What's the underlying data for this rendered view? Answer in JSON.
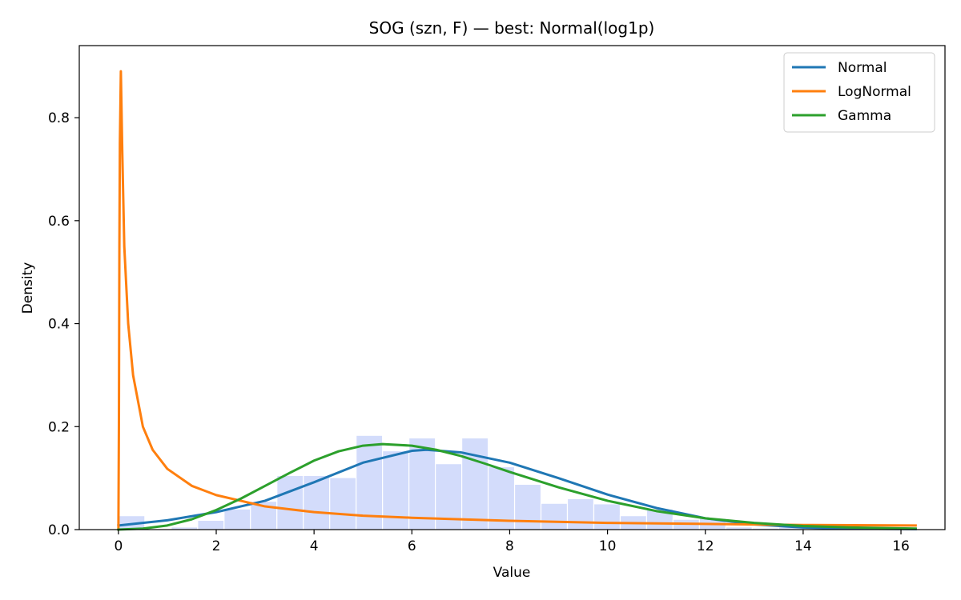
{
  "chart_data": {
    "type": "histogram+line",
    "title": "SOG (szn, F) — best: Normal(log1p)",
    "xlabel": "Value",
    "ylabel": "Density",
    "xlim": [
      -0.8,
      16.9
    ],
    "ylim": [
      0,
      0.94
    ],
    "x_ticks": [
      0,
      2,
      4,
      6,
      8,
      10,
      12,
      14,
      16
    ],
    "y_ticks": [
      0.0,
      0.2,
      0.4,
      0.6,
      0.8
    ],
    "x_tick_labels": [
      "0",
      "2",
      "4",
      "6",
      "8",
      "10",
      "12",
      "14",
      "16"
    ],
    "y_tick_labels": [
      "0.0",
      "0.2",
      "0.4",
      "0.6",
      "0.8"
    ],
    "grid": false,
    "histogram": {
      "color": "#d3dcfb",
      "bins": [
        {
          "x0": 0.0,
          "x1": 0.54,
          "density": 0.027
        },
        {
          "x0": 0.54,
          "x1": 1.08,
          "density": 0.0
        },
        {
          "x0": 1.08,
          "x1": 1.62,
          "density": 0.005
        },
        {
          "x0": 1.62,
          "x1": 2.16,
          "density": 0.018
        },
        {
          "x0": 2.16,
          "x1": 2.7,
          "density": 0.04
        },
        {
          "x0": 2.7,
          "x1": 3.24,
          "density": 0.055
        },
        {
          "x0": 3.24,
          "x1": 3.78,
          "density": 0.105
        },
        {
          "x0": 3.78,
          "x1": 4.32,
          "density": 0.105
        },
        {
          "x0": 4.32,
          "x1": 4.86,
          "density": 0.101
        },
        {
          "x0": 4.86,
          "x1": 5.4,
          "density": 0.183
        },
        {
          "x0": 5.4,
          "x1": 5.94,
          "density": 0.153
        },
        {
          "x0": 5.94,
          "x1": 6.48,
          "density": 0.178
        },
        {
          "x0": 6.48,
          "x1": 7.02,
          "density": 0.128
        },
        {
          "x0": 7.02,
          "x1": 7.56,
          "density": 0.178
        },
        {
          "x0": 7.56,
          "x1": 8.1,
          "density": 0.122
        },
        {
          "x0": 8.1,
          "x1": 8.64,
          "density": 0.088
        },
        {
          "x0": 8.64,
          "x1": 9.18,
          "density": 0.051
        },
        {
          "x0": 9.18,
          "x1": 9.72,
          "density": 0.06
        },
        {
          "x0": 9.72,
          "x1": 10.26,
          "density": 0.05
        },
        {
          "x0": 10.26,
          "x1": 10.8,
          "density": 0.027
        },
        {
          "x0": 10.8,
          "x1": 11.34,
          "density": 0.04
        },
        {
          "x0": 11.34,
          "x1": 11.88,
          "density": 0.02
        },
        {
          "x0": 11.88,
          "x1": 12.42,
          "density": 0.022
        },
        {
          "x0": 12.42,
          "x1": 12.96,
          "density": 0.005
        },
        {
          "x0": 12.96,
          "x1": 13.5,
          "density": 0.003
        },
        {
          "x0": 13.5,
          "x1": 14.04,
          "density": 0.005
        }
      ]
    },
    "series": [
      {
        "name": "Normal",
        "color": "#1f77b4",
        "x": [
          0.0,
          1.0,
          2.0,
          3.0,
          4.0,
          5.0,
          6.0,
          6.3,
          7.0,
          8.0,
          9.0,
          10.0,
          11.0,
          12.0,
          13.0,
          14.0,
          15.0,
          16.3
        ],
        "y": [
          0.008,
          0.018,
          0.034,
          0.056,
          0.092,
          0.13,
          0.153,
          0.155,
          0.15,
          0.13,
          0.1,
          0.068,
          0.042,
          0.022,
          0.01,
          0.004,
          0.002,
          0.001
        ]
      },
      {
        "name": "LogNormal",
        "color": "#ff7f0e",
        "x": [
          0.0,
          0.01,
          0.02,
          0.03,
          0.05,
          0.08,
          0.12,
          0.2,
          0.3,
          0.5,
          0.7,
          1.0,
          1.5,
          2.0,
          3.0,
          4.0,
          5.0,
          6.0,
          8.0,
          10.0,
          12.0,
          14.0,
          16.3
        ],
        "y": [
          0.0,
          0.2,
          0.55,
          0.75,
          0.89,
          0.73,
          0.55,
          0.4,
          0.3,
          0.2,
          0.155,
          0.118,
          0.085,
          0.067,
          0.045,
          0.034,
          0.027,
          0.023,
          0.017,
          0.013,
          0.011,
          0.009,
          0.008
        ]
      },
      {
        "name": "Gamma",
        "color": "#2ca02c",
        "x": [
          0.0,
          0.5,
          1.0,
          1.5,
          2.0,
          2.5,
          3.0,
          3.5,
          4.0,
          4.5,
          5.0,
          5.4,
          6.0,
          6.5,
          7.0,
          7.5,
          8.0,
          9.0,
          10.0,
          11.0,
          12.0,
          13.0,
          14.0,
          15.0,
          16.3
        ],
        "y": [
          0.0,
          0.002,
          0.008,
          0.02,
          0.038,
          0.06,
          0.085,
          0.11,
          0.134,
          0.152,
          0.163,
          0.166,
          0.163,
          0.155,
          0.143,
          0.128,
          0.112,
          0.082,
          0.056,
          0.036,
          0.022,
          0.013,
          0.007,
          0.004,
          0.002
        ]
      }
    ],
    "legend": {
      "placement": "top-right",
      "entries": [
        "Normal",
        "LogNormal",
        "Gamma"
      ]
    }
  }
}
